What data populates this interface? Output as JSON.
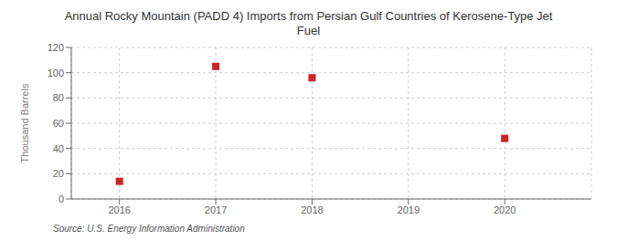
{
  "chart_data": {
    "type": "scatter",
    "title": "Annual Rocky Mountain (PADD 4) Imports from Persian Gulf Countries of Kerosene-Type Jet\nFuel",
    "y_label": "Thousand Barrels",
    "source": "Source: U.S. Energy Information Administration",
    "x": [
      2016,
      2017,
      2018,
      2020
    ],
    "values": [
      14,
      105,
      96,
      48
    ],
    "color": "#cc2222",
    "marker": "square",
    "xlim": [
      2015.5,
      2020.9
    ],
    "xticks": [
      2016,
      2017,
      2018,
      2019,
      2020
    ],
    "ylim": [
      0,
      120
    ],
    "yticks": [
      0,
      20,
      40,
      60,
      80,
      100,
      120
    ],
    "grid": true
  }
}
